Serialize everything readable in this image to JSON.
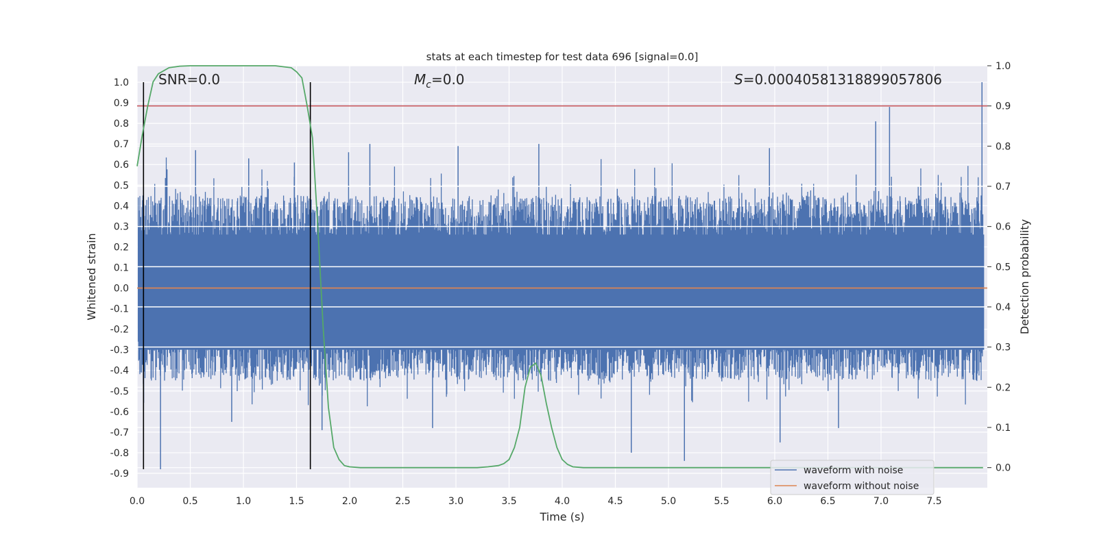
{
  "chart_data": {
    "type": "line",
    "title": "stats at each timestep for test data 696 [signal=0.0]",
    "xlabel": "Time (s)",
    "ylabel_left": "Whitened strain",
    "ylabel_right": "Detection probability",
    "xlim": [
      0.0,
      8.0
    ],
    "ylim_left": [
      -0.97,
      1.08
    ],
    "ylim_right": [
      -0.05,
      1.0
    ],
    "xticks": [
      "0.0",
      "0.5",
      "1.0",
      "1.5",
      "2.0",
      "2.5",
      "3.0",
      "3.5",
      "4.0",
      "4.5",
      "5.0",
      "5.5",
      "6.0",
      "6.5",
      "7.0",
      "7.5"
    ],
    "yticks_left": [
      "1.0",
      "0.9",
      "0.8",
      "0.7",
      "0.6",
      "0.5",
      "0.4",
      "0.3",
      "0.2",
      "0.1",
      "0.0",
      "-0.1",
      "-0.2",
      "-0.3",
      "-0.4",
      "-0.5",
      "-0.6",
      "-0.7",
      "-0.8",
      "-0.9"
    ],
    "yticks_right": [
      "1.0",
      "0.9",
      "0.8",
      "0.7",
      "0.6",
      "0.5",
      "0.4",
      "0.3",
      "0.2",
      "0.1",
      "0.0"
    ],
    "grid": true,
    "legend_position": "lower-right",
    "annotations": {
      "snr": "SNR=0.0",
      "mc_symbol": "M",
      "mc_sub": "c",
      "mc_value": "=0.0",
      "s_symbol": "S",
      "s_value": "=0.00040581318899057806"
    },
    "threshold": {
      "value": 0.9,
      "axis": "right",
      "color": "#c44e52"
    },
    "vertical_markers": [
      0.06,
      1.63
    ],
    "noise_envelope": {
      "typical_range": [
        -0.45,
        0.45
      ],
      "max_excursion": [
        -0.88,
        1.0
      ]
    },
    "series": [
      {
        "name": "waveform with noise",
        "color": "#4c72b0",
        "axis": "left",
        "spikes": [
          [
            0.22,
            -0.88
          ],
          [
            0.55,
            0.67
          ],
          [
            0.89,
            -0.65
          ],
          [
            1.05,
            0.63
          ],
          [
            1.48,
            0.61
          ],
          [
            1.74,
            -0.69
          ],
          [
            1.99,
            0.66
          ],
          [
            2.19,
            0.7
          ],
          [
            2.78,
            -0.68
          ],
          [
            3.02,
            0.69
          ],
          [
            3.78,
            0.7
          ],
          [
            4.65,
            -0.8
          ],
          [
            5.15,
            -0.84
          ],
          [
            5.95,
            0.68
          ],
          [
            6.05,
            -0.75
          ],
          [
            6.6,
            -0.68
          ],
          [
            6.95,
            0.81
          ],
          [
            7.08,
            0.88
          ],
          [
            7.95,
            1.0
          ]
        ]
      },
      {
        "name": "waveform without noise",
        "color": "#dd8452",
        "axis": "left",
        "x": [
          0.0,
          8.0
        ],
        "y": [
          0.0,
          0.0
        ]
      },
      {
        "name": "",
        "color": "#55a868",
        "axis": "right",
        "x": [
          0.0,
          0.05,
          0.1,
          0.15,
          0.2,
          0.3,
          0.4,
          0.5,
          0.8,
          1.0,
          1.3,
          1.45,
          1.5,
          1.55,
          1.6,
          1.65,
          1.7,
          1.75,
          1.8,
          1.85,
          1.9,
          1.95,
          2.0,
          2.1,
          2.5,
          3.0,
          3.2,
          3.3,
          3.4,
          3.45,
          3.5,
          3.55,
          3.6,
          3.65,
          3.7,
          3.75,
          3.8,
          3.85,
          3.9,
          3.95,
          4.0,
          4.05,
          4.1,
          4.2,
          4.5,
          5.0,
          6.0,
          7.0,
          7.96
        ],
        "y": [
          0.75,
          0.83,
          0.9,
          0.96,
          0.98,
          0.995,
          0.999,
          1.0,
          1.0,
          1.0,
          1.0,
          0.995,
          0.985,
          0.97,
          0.9,
          0.82,
          0.6,
          0.35,
          0.15,
          0.05,
          0.02,
          0.005,
          0.002,
          0.0,
          0.0,
          0.0,
          0.0,
          0.002,
          0.005,
          0.01,
          0.02,
          0.05,
          0.1,
          0.2,
          0.25,
          0.26,
          0.23,
          0.16,
          0.1,
          0.05,
          0.02,
          0.008,
          0.002,
          0.0,
          0.0,
          0.0,
          0.0,
          0.0,
          0.0
        ]
      }
    ]
  }
}
